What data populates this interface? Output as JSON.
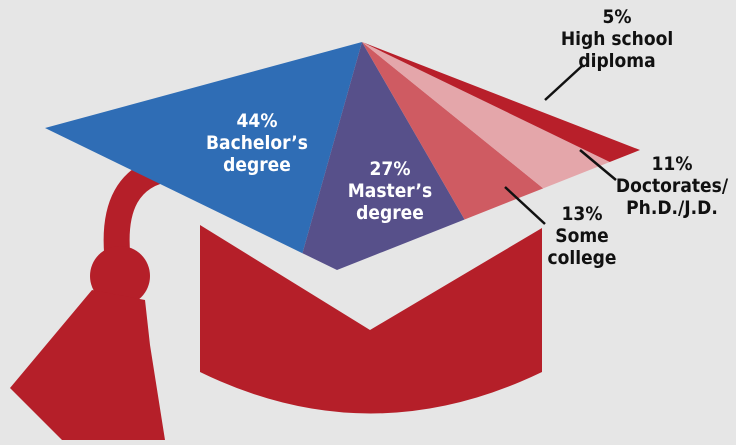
{
  "chart_data": {
    "type": "pie",
    "categories": [
      "Bachelor’s\ndegree",
      "Master’s\ndegree",
      "Some\ncollege",
      "Doctorates/\nPh.D./J.D.",
      "High school\ndiploma"
    ],
    "values": [
      44,
      27,
      13,
      11,
      5
    ],
    "value_labels": [
      "44%",
      "27%",
      "13%",
      "11%",
      "5%"
    ],
    "colors": [
      "#2f6db5",
      "#57508a",
      "#cf5b62",
      "#e4a6aa",
      "#b81f2a"
    ]
  }
}
